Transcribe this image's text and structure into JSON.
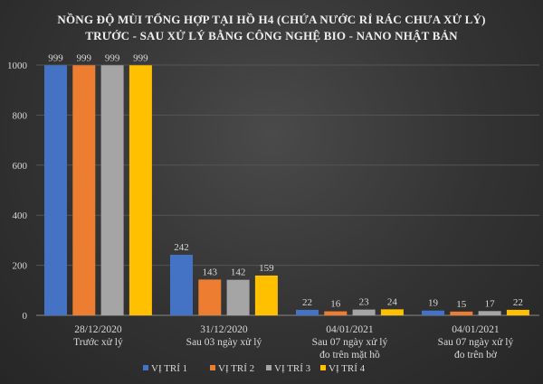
{
  "chart_data": {
    "type": "bar",
    "title": [
      "NỒNG ĐỘ MÙI TỔNG HỢP TẠI HỒ H4 (CHỨA NƯỚC RỈ RÁC CHƯA XỬ LÝ)",
      "TRƯỚC - SAU XỬ LÝ BẰNG CÔNG NGHỆ BIO - NANO NHẬT BẢN"
    ],
    "categories": [
      [
        "28/12/2020",
        "Trước xử lý"
      ],
      [
        "31/12/2020",
        "Sau 03 ngày xử lý"
      ],
      [
        "04/01/2021",
        "Sau 07 ngày xử lý",
        "đo trên mặt hồ"
      ],
      [
        "04/01/2021",
        "Sau 07 ngày xử lý",
        "đo trên bờ"
      ]
    ],
    "series": [
      {
        "name": "VỊ TRÍ 1",
        "color": "#4472c4",
        "values": [
          999,
          242,
          22,
          19
        ]
      },
      {
        "name": "VỊ TRÍ 2",
        "color": "#ed7d31",
        "values": [
          999,
          143,
          16,
          15
        ]
      },
      {
        "name": "VỊ TRÍ 3",
        "color": "#a5a5a5",
        "values": [
          999,
          142,
          23,
          17
        ]
      },
      {
        "name": "VỊ TRÍ 4",
        "color": "#ffc000",
        "values": [
          999,
          159,
          24,
          22
        ]
      }
    ],
    "yticks": [
      0,
      200,
      400,
      600,
      800,
      1000
    ],
    "ylim": [
      0,
      1000
    ],
    "xlabel": "",
    "ylabel": "",
    "grid": true,
    "legend": "bottom"
  }
}
